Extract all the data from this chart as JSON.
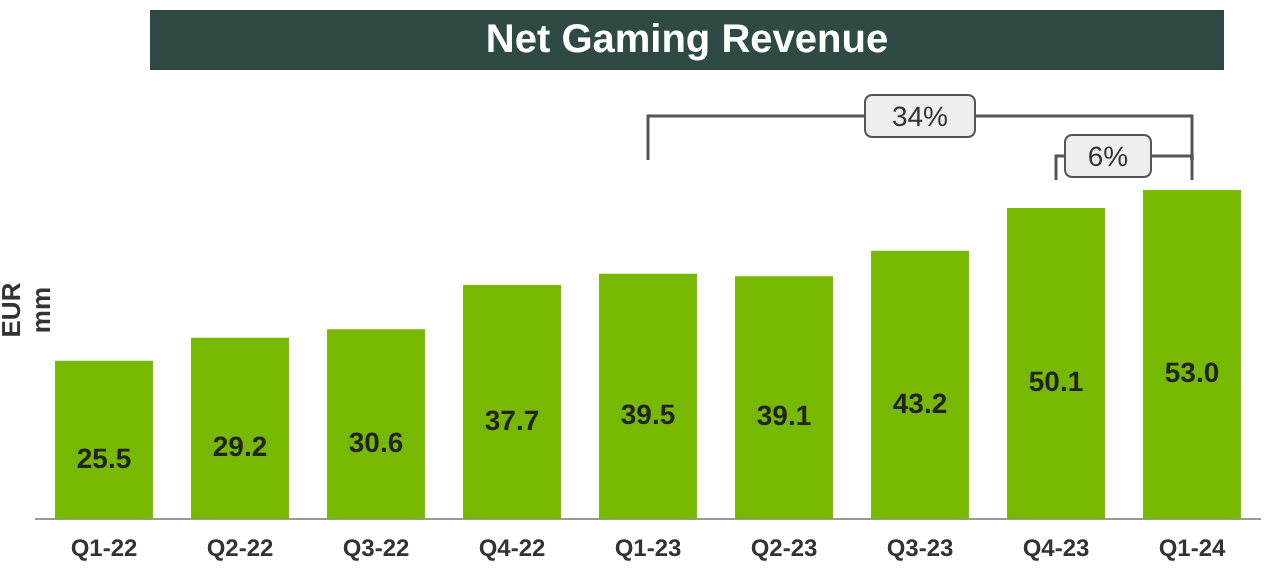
{
  "chart_data": {
    "type": "bar",
    "title": "Net Gaming Revenue",
    "ylabel": "EUR mm",
    "categories": [
      "Q1-22",
      "Q2-22",
      "Q3-22",
      "Q4-22",
      "Q1-23",
      "Q2-23",
      "Q3-23",
      "Q4-23",
      "Q1-24"
    ],
    "values": [
      25.5,
      29.2,
      30.6,
      37.7,
      39.5,
      39.1,
      43.2,
      50.1,
      53.0
    ],
    "value_labels": [
      "25.5",
      "29.2",
      "30.6",
      "37.7",
      "39.5",
      "39.1",
      "43.2",
      "50.1",
      "53.0"
    ],
    "color": "#76b900",
    "tick_labels": "x",
    "grid": false,
    "legend": false,
    "annotations": [
      "34%",
      "6%"
    ]
  }
}
